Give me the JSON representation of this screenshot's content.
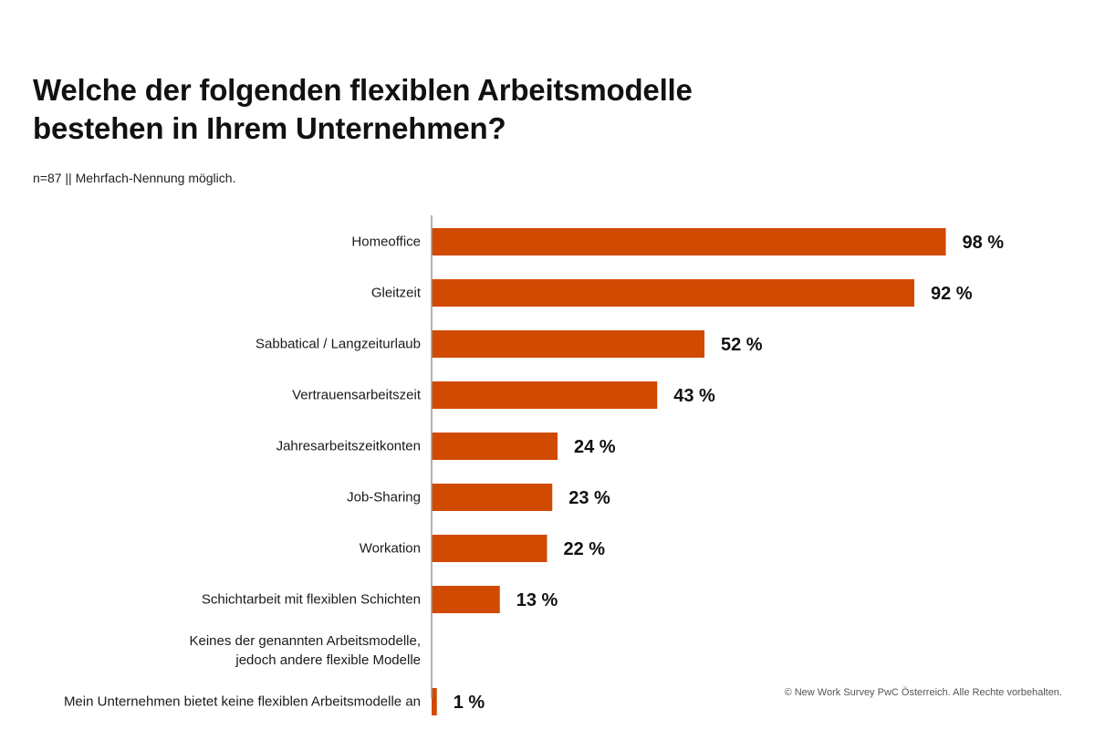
{
  "title_line1": "Welche der folgenden flexiblen Arbeitsmodelle",
  "title_line2": "bestehen in Ihrem Unternehmen?",
  "subtitle": "n=87 || Mehrfach-Nennung möglich.",
  "footer": "© New Work Survey PwC Österreich. Alle Rechte vorbehalten.",
  "bar_color": "#d04a02",
  "chart_data": {
    "type": "bar",
    "orientation": "horizontal",
    "title": "Welche der folgenden flexiblen Arbeitsmodelle bestehen in Ihrem Unternehmen?",
    "categories": [
      [
        "Homeoffice"
      ],
      [
        "Gleitzeit"
      ],
      [
        "Sabbatical / Langzeiturlaub"
      ],
      [
        "Vertrauensarbeitszeit"
      ],
      [
        "Jahresarbeitszeitkonten"
      ],
      [
        "Job-Sharing"
      ],
      [
        "Workation"
      ],
      [
        "Schichtarbeit mit flexiblen Schichten"
      ],
      [
        "Keines der genannten Arbeitsmodelle,",
        "jedoch andere flexible Modelle"
      ],
      [
        "Mein Unternehmen bietet keine flexiblen Arbeitsmodelle an"
      ]
    ],
    "values": [
      98,
      92,
      52,
      43,
      24,
      23,
      22,
      13,
      null,
      1
    ],
    "value_labels": [
      "98 %",
      "92 %",
      "52 %",
      "43 %",
      "24 %",
      "23 %",
      "22 %",
      "13 %",
      "",
      "1 %"
    ],
    "unit": "%",
    "xlim": [
      0,
      100
    ],
    "xlabel": "",
    "ylabel": ""
  }
}
